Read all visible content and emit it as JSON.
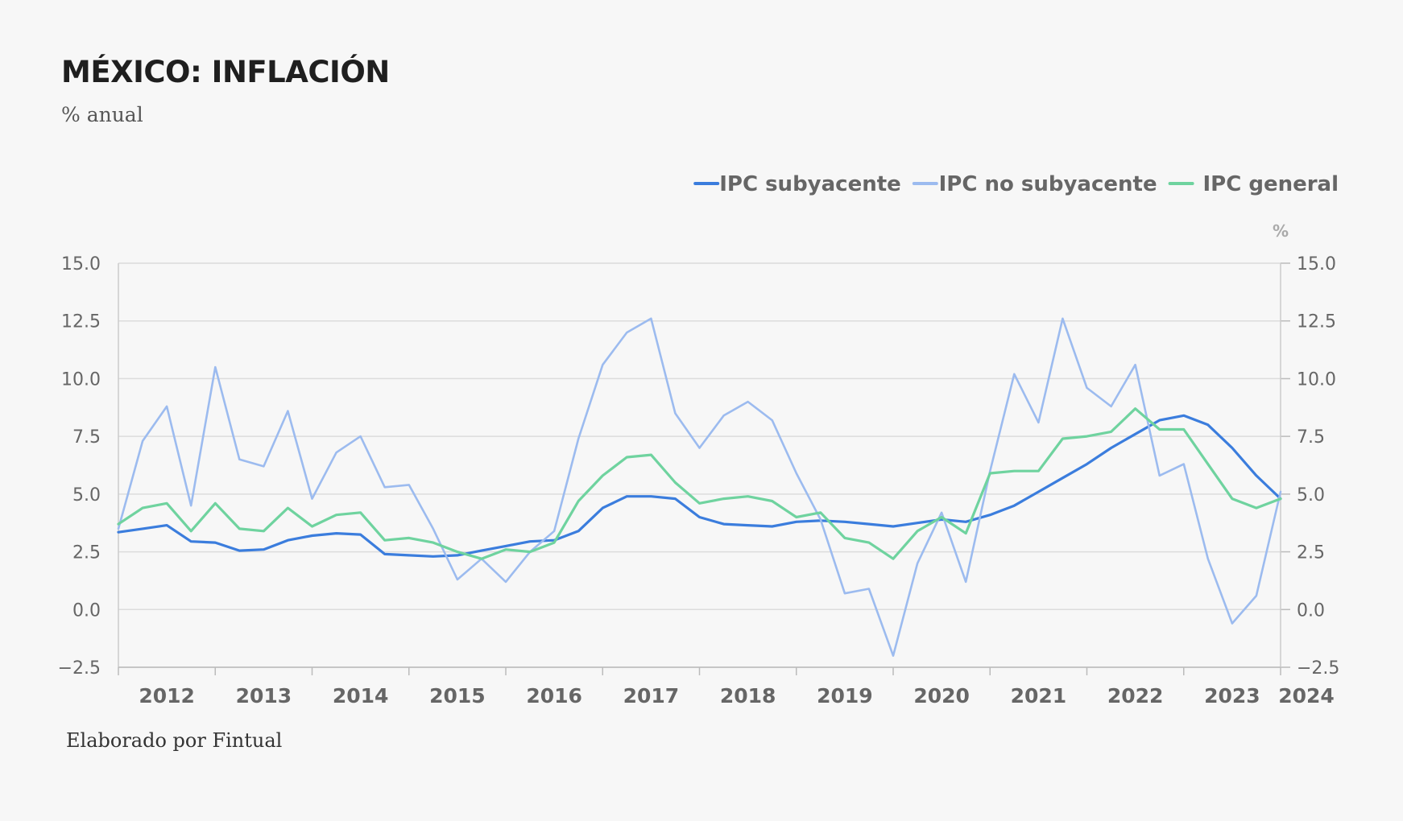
{
  "title": "MÉXICO: INFLACIÓN",
  "subtitle": "% anual",
  "footer": "Elaborado por Fintual",
  "chart_data": {
    "type": "line",
    "title": "MÉXICO: INFLACIÓN",
    "subtitle": "% anual",
    "right_axis_unit": "%",
    "ylim": [
      -2.5,
      15.0
    ],
    "yticks": [
      -2.5,
      0.0,
      2.5,
      5.0,
      7.5,
      10.0,
      12.5,
      15.0
    ],
    "ytick_labels": [
      "−2.5",
      "0.0",
      "2.5",
      "5.0",
      "7.5",
      "10.0",
      "12.5",
      "15.0"
    ],
    "xlim": [
      2012.0,
      2024.0
    ],
    "xticks": [
      2012,
      2013,
      2014,
      2015,
      2016,
      2017,
      2018,
      2019,
      2020,
      2021,
      2022,
      2023,
      2024
    ],
    "grid": true,
    "legend_position": "top-right",
    "series": [
      {
        "name": "IPC subyacente",
        "color": "#3b7ddd",
        "x": [
          2012.0,
          2012.25,
          2012.5,
          2012.75,
          2013.0,
          2013.25,
          2013.5,
          2013.75,
          2014.0,
          2014.25,
          2014.5,
          2014.75,
          2015.0,
          2015.25,
          2015.5,
          2015.75,
          2016.0,
          2016.25,
          2016.5,
          2016.75,
          2017.0,
          2017.25,
          2017.5,
          2017.75,
          2018.0,
          2018.25,
          2018.5,
          2018.75,
          2019.0,
          2019.25,
          2019.5,
          2019.75,
          2020.0,
          2020.25,
          2020.5,
          2020.75,
          2021.0,
          2021.25,
          2021.5,
          2021.75,
          2022.0,
          2022.25,
          2022.5,
          2022.75,
          2023.0,
          2023.25,
          2023.5,
          2023.75,
          2024.0
        ],
        "y": [
          3.35,
          3.5,
          3.65,
          2.95,
          2.9,
          2.55,
          2.6,
          3.0,
          3.2,
          3.3,
          3.25,
          2.4,
          2.35,
          2.3,
          2.35,
          2.55,
          2.75,
          2.95,
          3.0,
          3.4,
          4.4,
          4.9,
          4.9,
          4.8,
          4.0,
          3.7,
          3.65,
          3.6,
          3.8,
          3.85,
          3.8,
          3.7,
          3.6,
          3.75,
          3.9,
          3.8,
          4.1,
          4.5,
          5.1,
          5.7,
          6.3,
          7.0,
          7.6,
          8.2,
          8.4,
          8.0,
          7.0,
          5.8,
          4.8
        ]
      },
      {
        "name": "IPC no subyacente",
        "color": "#9cbbef",
        "x": [
          2012.0,
          2012.25,
          2012.5,
          2012.75,
          2013.0,
          2013.25,
          2013.5,
          2013.75,
          2014.0,
          2014.25,
          2014.5,
          2014.75,
          2015.0,
          2015.25,
          2015.5,
          2015.75,
          2016.0,
          2016.25,
          2016.5,
          2016.75,
          2017.0,
          2017.25,
          2017.5,
          2017.75,
          2018.0,
          2018.25,
          2018.5,
          2018.75,
          2019.0,
          2019.25,
          2019.5,
          2019.75,
          2020.0,
          2020.25,
          2020.5,
          2020.75,
          2021.0,
          2021.25,
          2021.5,
          2021.75,
          2022.0,
          2022.25,
          2022.5,
          2022.75,
          2023.0,
          2023.25,
          2023.5,
          2023.75,
          2024.0
        ],
        "y": [
          3.5,
          7.3,
          8.8,
          4.5,
          10.5,
          6.5,
          6.2,
          8.6,
          4.8,
          6.8,
          7.5,
          5.3,
          5.4,
          3.5,
          1.3,
          2.2,
          1.2,
          2.5,
          3.4,
          7.4,
          10.6,
          12.0,
          12.6,
          8.5,
          7.0,
          8.4,
          9.0,
          8.2,
          5.9,
          3.9,
          0.7,
          0.9,
          -2.0,
          2.0,
          4.2,
          1.2,
          6.0,
          10.2,
          8.1,
          12.6,
          9.6,
          8.8,
          10.6,
          5.8,
          6.3,
          2.2,
          -0.6,
          0.6,
          5.1
        ]
      },
      {
        "name": "IPC general",
        "color": "#6fd39f",
        "x": [
          2012.0,
          2012.25,
          2012.5,
          2012.75,
          2013.0,
          2013.25,
          2013.5,
          2013.75,
          2014.0,
          2014.25,
          2014.5,
          2014.75,
          2015.0,
          2015.25,
          2015.5,
          2015.75,
          2016.0,
          2016.25,
          2016.5,
          2016.75,
          2017.0,
          2017.25,
          2017.5,
          2017.75,
          2018.0,
          2018.25,
          2018.5,
          2018.75,
          2019.0,
          2019.25,
          2019.5,
          2019.75,
          2020.0,
          2020.25,
          2020.5,
          2020.75,
          2021.0,
          2021.25,
          2021.5,
          2021.75,
          2022.0,
          2022.25,
          2022.5,
          2022.75,
          2023.0,
          2023.25,
          2023.5,
          2023.75,
          2024.0
        ],
        "y": [
          3.7,
          4.4,
          4.6,
          3.4,
          4.6,
          3.5,
          3.4,
          4.4,
          3.6,
          4.1,
          4.2,
          3.0,
          3.1,
          2.9,
          2.5,
          2.2,
          2.6,
          2.5,
          2.9,
          4.7,
          5.8,
          6.6,
          6.7,
          5.5,
          4.6,
          4.8,
          4.9,
          4.7,
          4.0,
          4.2,
          3.1,
          2.9,
          2.2,
          3.4,
          4.0,
          3.3,
          5.9,
          6.0,
          6.0,
          7.4,
          7.5,
          7.7,
          8.7,
          7.8,
          7.8,
          6.3,
          4.8,
          4.4,
          4.8
        ]
      }
    ]
  }
}
